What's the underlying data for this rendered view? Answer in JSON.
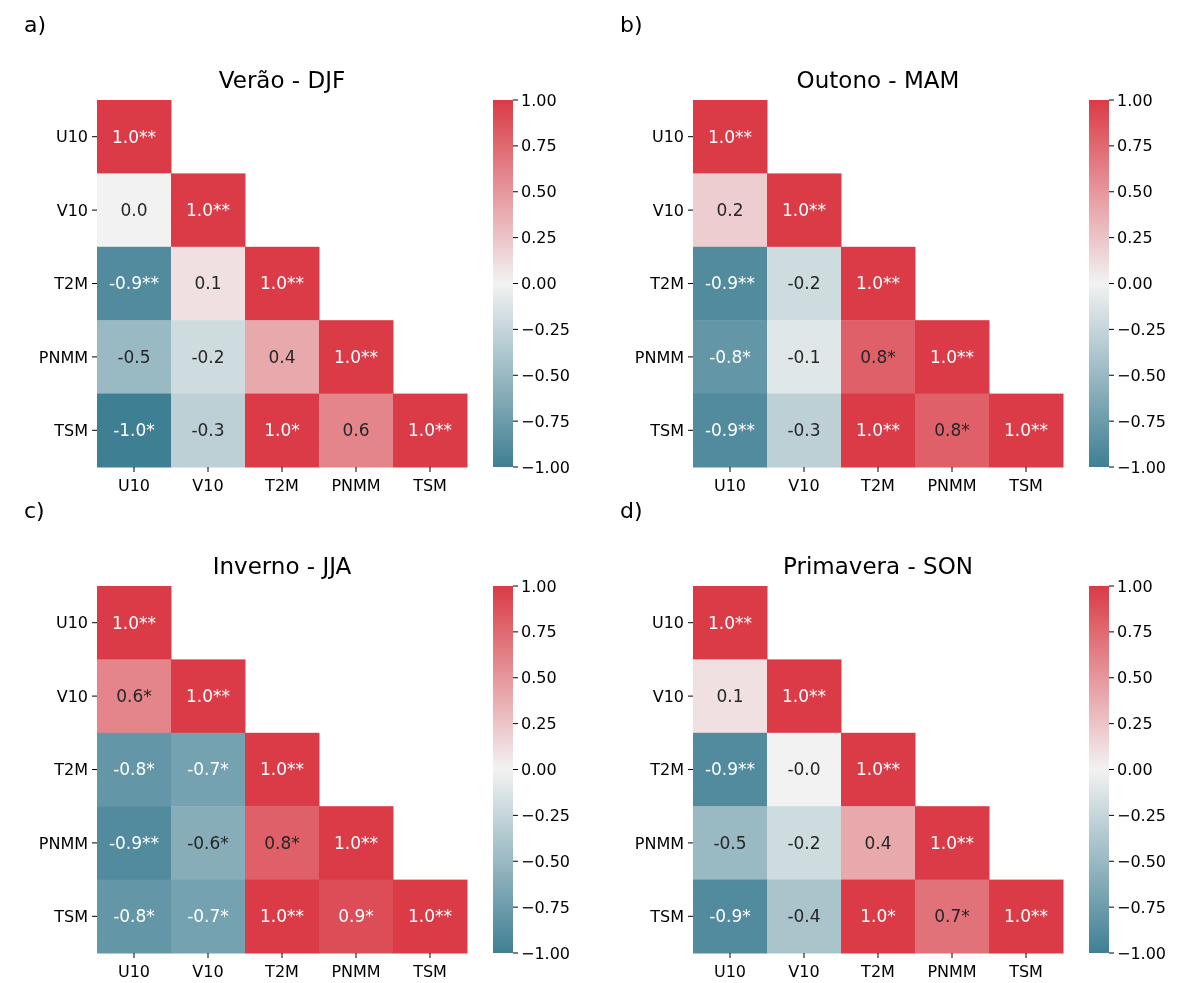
{
  "chart_data": [
    {
      "type": "heatmap",
      "title": "Verão - DJF",
      "annotations": [
        "a)"
      ],
      "categories": [
        "U10",
        "V10",
        "T2M",
        "PNMM",
        "TSM"
      ],
      "y_categories": [
        "U10",
        "V10",
        "T2M",
        "PNMM",
        "TSM"
      ],
      "cells": [
        [
          1.0,
          null,
          null,
          null,
          null
        ],
        [
          0.0,
          1.0,
          null,
          null,
          null
        ],
        [
          -0.9,
          0.1,
          1.0,
          null,
          null
        ],
        [
          -0.5,
          -0.2,
          0.4,
          1.0,
          null
        ],
        [
          -1.0,
          -0.3,
          1.0,
          0.6,
          1.0
        ]
      ],
      "cell_labels": [
        [
          "1.0**",
          null,
          null,
          null,
          null
        ],
        [
          "0.0",
          "1.0**",
          null,
          null,
          null
        ],
        [
          "-0.9**",
          "0.1",
          "1.0**",
          null,
          null
        ],
        [
          "-0.5",
          "-0.2",
          "0.4",
          "1.0**",
          null
        ],
        [
          "-1.0*",
          "-0.3",
          "1.0*",
          "0.6",
          "1.0**"
        ]
      ],
      "clim": [
        -1,
        1
      ],
      "cticks": [
        {
          "value": -1,
          "label": "−1.00"
        },
        {
          "value": -0.75,
          "label": "−0.75"
        },
        {
          "value": -0.5,
          "label": "−0.50"
        },
        {
          "value": -0.25,
          "label": "−0.25"
        },
        {
          "value": 0,
          "label": "0.00"
        },
        {
          "value": 0.25,
          "label": "0.25"
        },
        {
          "value": 0.5,
          "label": "0.50"
        },
        {
          "value": 0.75,
          "label": "0.75"
        },
        {
          "value": 1,
          "label": "1.00"
        }
      ]
    },
    {
      "type": "heatmap",
      "title": "Outono - MAM",
      "annotations": [
        "b)"
      ],
      "categories": [
        "U10",
        "V10",
        "T2M",
        "PNMM",
        "TSM"
      ],
      "y_categories": [
        "U10",
        "V10",
        "T2M",
        "PNMM",
        "TSM"
      ],
      "cells": [
        [
          1.0,
          null,
          null,
          null,
          null
        ],
        [
          0.2,
          1.0,
          null,
          null,
          null
        ],
        [
          -0.9,
          -0.2,
          1.0,
          null,
          null
        ],
        [
          -0.8,
          -0.1,
          0.8,
          1.0,
          null
        ],
        [
          -0.9,
          -0.3,
          1.0,
          0.8,
          1.0
        ]
      ],
      "cell_labels": [
        [
          "1.0**",
          null,
          null,
          null,
          null
        ],
        [
          "0.2",
          "1.0**",
          null,
          null,
          null
        ],
        [
          "-0.9**",
          "-0.2",
          "1.0**",
          null,
          null
        ],
        [
          "-0.8*",
          "-0.1",
          "0.8*",
          "1.0**",
          null
        ],
        [
          "-0.9**",
          "-0.3",
          "1.0**",
          "0.8*",
          "1.0**"
        ]
      ],
      "clim": [
        -1,
        1
      ],
      "cticks": [
        {
          "value": -1,
          "label": "−1.00"
        },
        {
          "value": -0.75,
          "label": "−0.75"
        },
        {
          "value": -0.5,
          "label": "−0.50"
        },
        {
          "value": -0.25,
          "label": "−0.25"
        },
        {
          "value": 0,
          "label": "0.00"
        },
        {
          "value": 0.25,
          "label": "0.25"
        },
        {
          "value": 0.5,
          "label": "0.50"
        },
        {
          "value": 0.75,
          "label": "0.75"
        },
        {
          "value": 1,
          "label": "1.00"
        }
      ]
    },
    {
      "type": "heatmap",
      "title": "Inverno - JJA",
      "annotations": [
        "c)"
      ],
      "categories": [
        "U10",
        "V10",
        "T2M",
        "PNMM",
        "TSM"
      ],
      "y_categories": [
        "U10",
        "V10",
        "T2M",
        "PNMM",
        "TSM"
      ],
      "cells": [
        [
          1.0,
          null,
          null,
          null,
          null
        ],
        [
          0.6,
          1.0,
          null,
          null,
          null
        ],
        [
          -0.8,
          -0.7,
          1.0,
          null,
          null
        ],
        [
          -0.9,
          -0.6,
          0.8,
          1.0,
          null
        ],
        [
          -0.8,
          -0.7,
          1.0,
          0.9,
          1.0
        ]
      ],
      "cell_labels": [
        [
          "1.0**",
          null,
          null,
          null,
          null
        ],
        [
          "0.6*",
          "1.0**",
          null,
          null,
          null
        ],
        [
          "-0.8*",
          "-0.7*",
          "1.0**",
          null,
          null
        ],
        [
          "-0.9**",
          "-0.6*",
          "0.8*",
          "1.0**",
          null
        ],
        [
          "-0.8*",
          "-0.7*",
          "1.0**",
          "0.9*",
          "1.0**"
        ]
      ],
      "clim": [
        -1,
        1
      ],
      "cticks": [
        {
          "value": -1,
          "label": "−1.00"
        },
        {
          "value": -0.75,
          "label": "−0.75"
        },
        {
          "value": -0.5,
          "label": "−0.50"
        },
        {
          "value": -0.25,
          "label": "−0.25"
        },
        {
          "value": 0,
          "label": "0.00"
        },
        {
          "value": 0.25,
          "label": "0.25"
        },
        {
          "value": 0.5,
          "label": "0.50"
        },
        {
          "value": 0.75,
          "label": "0.75"
        },
        {
          "value": 1,
          "label": "1.00"
        }
      ]
    },
    {
      "type": "heatmap",
      "title": "Primavera - SON",
      "annotations": [
        "d)"
      ],
      "categories": [
        "U10",
        "V10",
        "T2M",
        "PNMM",
        "TSM"
      ],
      "y_categories": [
        "U10",
        "V10",
        "T2M",
        "PNMM",
        "TSM"
      ],
      "cells": [
        [
          1.0,
          null,
          null,
          null,
          null
        ],
        [
          0.1,
          1.0,
          null,
          null,
          null
        ],
        [
          -0.9,
          -0.0,
          1.0,
          null,
          null
        ],
        [
          -0.5,
          -0.2,
          0.4,
          1.0,
          null
        ],
        [
          -0.9,
          -0.4,
          1.0,
          0.7,
          1.0
        ]
      ],
      "cell_labels": [
        [
          "1.0**",
          null,
          null,
          null,
          null
        ],
        [
          "0.1",
          "1.0**",
          null,
          null,
          null
        ],
        [
          "-0.9**",
          "-0.0",
          "1.0**",
          null,
          null
        ],
        [
          "-0.5",
          "-0.2",
          "0.4",
          "1.0**",
          null
        ],
        [
          "-0.9*",
          "-0.4",
          "1.0*",
          "0.7*",
          "1.0**"
        ]
      ],
      "clim": [
        -1,
        1
      ],
      "cticks": [
        {
          "value": -1,
          "label": "−1.00"
        },
        {
          "value": -0.75,
          "label": "−0.75"
        },
        {
          "value": -0.5,
          "label": "−0.50"
        },
        {
          "value": -0.25,
          "label": "−0.25"
        },
        {
          "value": 0,
          "label": "0.00"
        },
        {
          "value": 0.25,
          "label": "0.25"
        },
        {
          "value": 0.5,
          "label": "0.50"
        },
        {
          "value": 0.75,
          "label": "0.75"
        },
        {
          "value": 1,
          "label": "1.00"
        }
      ]
    }
  ]
}
